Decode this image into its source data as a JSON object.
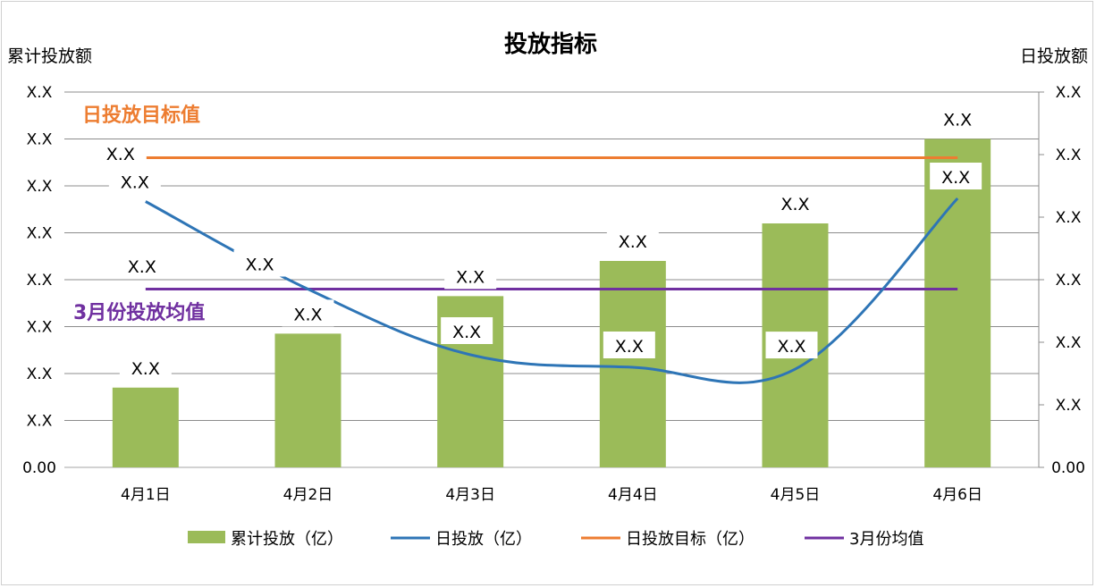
{
  "chart_data": {
    "type": "bar",
    "title": "投放指标",
    "left_axis_title": "累计投放额",
    "right_axis_title": "日投放额",
    "left_axis_ticks": [
      "0.00",
      "X.X",
      "X.X",
      "X.X",
      "X.X",
      "X.X",
      "X.X",
      "X.X",
      "X.X"
    ],
    "right_axis_ticks": [
      "0.00",
      "X.X",
      "X.X",
      "X.X",
      "X.X",
      "X.X",
      "X.X"
    ],
    "categories": [
      "4月1日",
      "4月2日",
      "4月3日",
      "4月4日",
      "4月5日",
      "4月6日"
    ],
    "left_ylim": [
      0,
      8
    ],
    "right_ylim": [
      0,
      6
    ],
    "grid": true,
    "legend_position": "bottom",
    "series": [
      {
        "name": "累计投放（亿）",
        "kind": "bar",
        "axis": "left",
        "color": "#9BBB59",
        "values": [
          1.7,
          2.85,
          3.65,
          4.4,
          5.2,
          7.0
        ],
        "labels": [
          "X.X",
          "X.X",
          "X.X",
          "X.X",
          "X.X",
          "X.X"
        ]
      },
      {
        "name": "日投放（亿）",
        "kind": "line",
        "axis": "right",
        "color": "#2E75B6",
        "values": [
          4.25,
          2.85,
          1.8,
          1.6,
          1.57,
          4.3
        ],
        "labels": [
          "X.X",
          "X.X",
          "X.X",
          "X.X",
          "X.X",
          "X.X"
        ]
      },
      {
        "name": "日投放目标（亿）",
        "kind": "line",
        "axis": "left",
        "color": "#ED7D31",
        "values": [
          6.6,
          6.6,
          6.6,
          6.6,
          6.6,
          6.6
        ]
      },
      {
        "name": "3月份均值",
        "kind": "line",
        "axis": "left",
        "color": "#7030A0",
        "values": [
          3.8,
          3.8,
          3.8,
          3.8,
          3.8,
          3.8
        ]
      }
    ],
    "annotations": [
      {
        "text": "日投放目标值",
        "color": "#ED7D31"
      },
      {
        "text": "3月份投放均值",
        "color": "#7030A0"
      },
      {
        "text": "X.X"
      },
      {
        "text": "X.X"
      }
    ]
  }
}
